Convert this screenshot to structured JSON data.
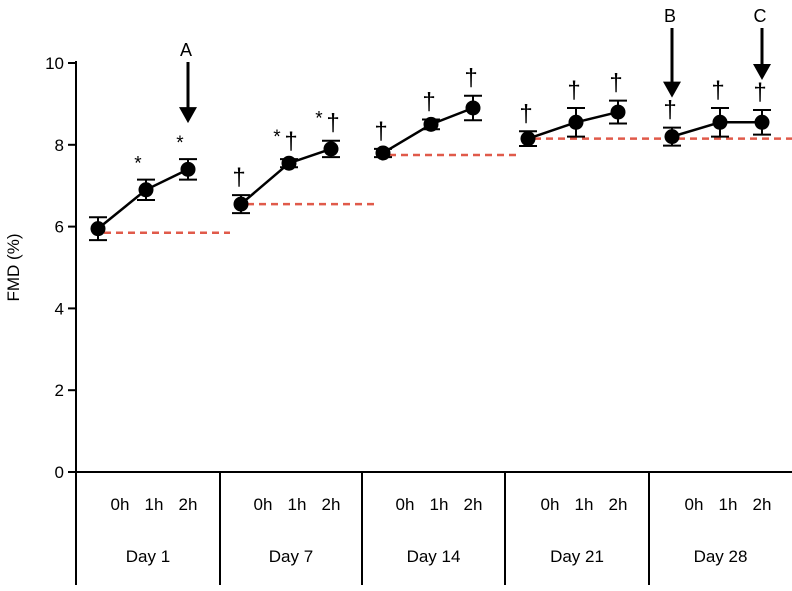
{
  "chart_data": {
    "type": "line",
    "title": "",
    "xlabel": "",
    "ylabel": "FMD (%)",
    "ylim": [
      0,
      10
    ],
    "yticks": [
      "0",
      "2",
      "4",
      "6",
      "8",
      "10"
    ],
    "hour_labels": [
      "0h",
      "1h",
      "2h"
    ],
    "groups": [
      {
        "label": "Day 1",
        "values": [
          5.95,
          6.9,
          7.4
        ],
        "errors": [
          0.28,
          0.25,
          0.25
        ],
        "baseline": 5.85,
        "markers": [
          [
            "",
            "",
            ""
          ],
          [
            "*",
            "",
            ""
          ],
          [
            "*",
            "",
            ""
          ]
        ]
      },
      {
        "label": "Day 7",
        "values": [
          6.55,
          7.55,
          7.9
        ],
        "errors": [
          0.22,
          0.1,
          0.2
        ],
        "baseline": 6.55,
        "markers": [
          [
            "",
            "†",
            ""
          ],
          [
            "*",
            "†",
            ""
          ],
          [
            "*",
            "†",
            ""
          ]
        ]
      },
      {
        "label": "Day 14",
        "values": [
          7.8,
          8.5,
          8.9
        ],
        "errors": [
          0.1,
          0.12,
          0.3
        ],
        "baseline": 7.75,
        "markers": [
          [
            "",
            "†",
            ""
          ],
          [
            "",
            "†",
            ""
          ],
          [
            "",
            "†",
            ""
          ]
        ]
      },
      {
        "label": "Day 21",
        "values": [
          8.15,
          8.55,
          8.8
        ],
        "errors": [
          0.18,
          0.35,
          0.28
        ],
        "baseline": 8.15,
        "markers": [
          [
            "",
            "†",
            ""
          ],
          [
            "",
            "†",
            ""
          ],
          [
            "",
            "†",
            ""
          ]
        ]
      },
      {
        "label": "Day 28",
        "values": [
          8.2,
          8.55,
          8.55
        ],
        "errors": [
          0.22,
          0.35,
          0.3
        ],
        "baseline": 8.15,
        "markers": [
          [
            "",
            "†",
            ""
          ],
          [
            "",
            "†",
            ""
          ],
          [
            "",
            "†",
            ""
          ]
        ]
      }
    ],
    "arrows": [
      {
        "label": "A",
        "group": 0,
        "point": 2
      },
      {
        "label": "B",
        "group": 4,
        "point": 0
      },
      {
        "label": "C",
        "group": 4,
        "point": 2
      }
    ],
    "colors": {
      "line": "#000000",
      "baseline": "#e05a4a"
    }
  }
}
